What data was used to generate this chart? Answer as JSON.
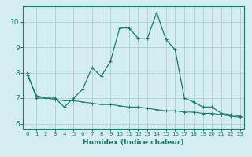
{
  "xlabel": "Humidex (Indice chaleur)",
  "ylabel": "",
  "bg_color": "#d4edf0",
  "grid_color": "#aed4d8",
  "line_color": "#1a7a6e",
  "xlim": [
    -0.5,
    23.5
  ],
  "ylim": [
    5.8,
    10.6
  ],
  "yticks": [
    6,
    7,
    8,
    9,
    10
  ],
  "xticks": [
    0,
    1,
    2,
    3,
    4,
    5,
    6,
    7,
    8,
    9,
    10,
    11,
    12,
    13,
    14,
    15,
    16,
    17,
    18,
    19,
    20,
    21,
    22,
    23
  ],
  "line1_x": [
    0,
    1,
    2,
    3,
    4,
    5,
    6,
    7,
    8,
    9,
    10,
    11,
    12,
    13,
    14,
    15,
    16,
    17,
    18,
    19,
    20,
    21,
    22,
    23
  ],
  "line1_y": [
    8.0,
    7.0,
    7.0,
    7.0,
    6.65,
    7.0,
    7.35,
    8.2,
    7.85,
    8.45,
    9.75,
    9.75,
    9.35,
    9.35,
    10.35,
    9.3,
    8.9,
    7.0,
    6.85,
    6.65,
    6.65,
    6.4,
    6.35,
    6.3
  ],
  "line2_x": [
    0,
    1,
    2,
    3,
    4,
    5,
    6,
    7,
    8,
    9,
    10,
    11,
    12,
    13,
    14,
    15,
    16,
    17,
    18,
    19,
    20,
    21,
    22,
    23
  ],
  "line2_y": [
    7.9,
    7.1,
    7.0,
    6.95,
    6.9,
    6.9,
    6.85,
    6.8,
    6.75,
    6.75,
    6.7,
    6.65,
    6.65,
    6.6,
    6.55,
    6.5,
    6.5,
    6.45,
    6.45,
    6.4,
    6.4,
    6.35,
    6.3,
    6.25
  ]
}
